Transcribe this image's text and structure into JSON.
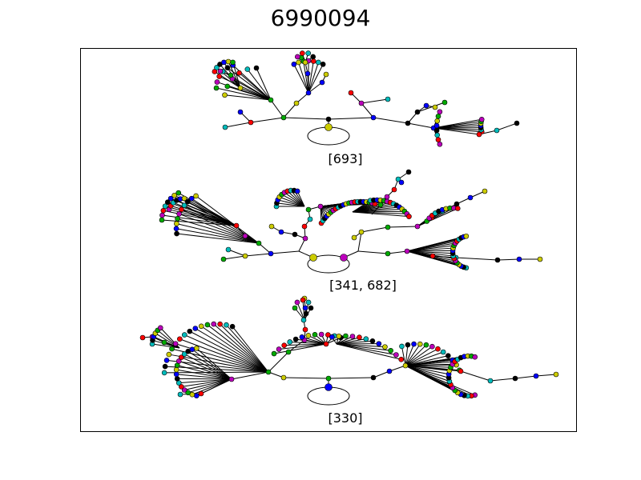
{
  "title": "6990094",
  "panels": [
    {
      "label": "[693]"
    },
    {
      "label": "[341, 682]"
    },
    {
      "label": "[330]"
    }
  ],
  "node_colors": [
    "#ff0000",
    "#00aa00",
    "#0000ff",
    "#00bbbb",
    "#bb00bb",
    "#cccc00",
    "#000000"
  ]
}
